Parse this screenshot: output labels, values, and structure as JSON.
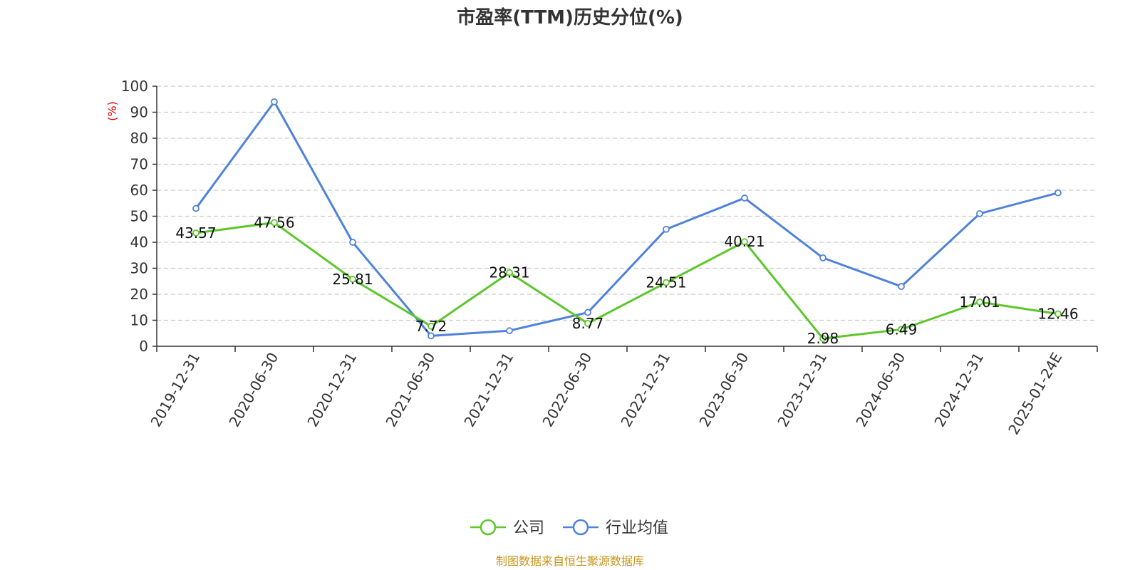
{
  "chart_data": {
    "type": "line",
    "title": "市盈率(TTM)历史分位(%)",
    "ylabel": "(%)",
    "xlabel": "",
    "ylim": [
      0,
      100
    ],
    "yticks": [
      0,
      10,
      20,
      30,
      40,
      50,
      60,
      70,
      80,
      90,
      100
    ],
    "grid": true,
    "legend_position": "bottom-center",
    "categories": [
      "2019-12-31",
      "2020-06-30",
      "2020-12-31",
      "2021-06-30",
      "2021-12-31",
      "2022-06-30",
      "2022-12-31",
      "2023-06-30",
      "2023-12-31",
      "2024-06-30",
      "2024-12-31",
      "2025-01-24E"
    ],
    "series": [
      {
        "name": "公司",
        "color": "#5cc72a",
        "values": [
          43.57,
          47.56,
          25.81,
          7.72,
          28.31,
          8.77,
          24.51,
          40.21,
          2.98,
          6.49,
          17.01,
          12.46
        ],
        "data_labels": [
          "43.57",
          "47.56",
          "25.81",
          "7.72",
          "28.31",
          "8.77",
          "24.51",
          "40.21",
          "2.98",
          "6.49",
          "17.01",
          "12.46"
        ]
      },
      {
        "name": "行业均值",
        "color": "#4f82dc",
        "values": [
          53,
          94,
          40,
          4,
          6,
          13,
          45,
          57,
          34,
          23,
          51,
          59
        ]
      }
    ]
  },
  "source_note": "制图数据来自恒生聚源数据库",
  "colors": {
    "axis": "#333333",
    "grid": "#cccccc",
    "ylabel": "#e00000",
    "source": "#c8941a"
  }
}
